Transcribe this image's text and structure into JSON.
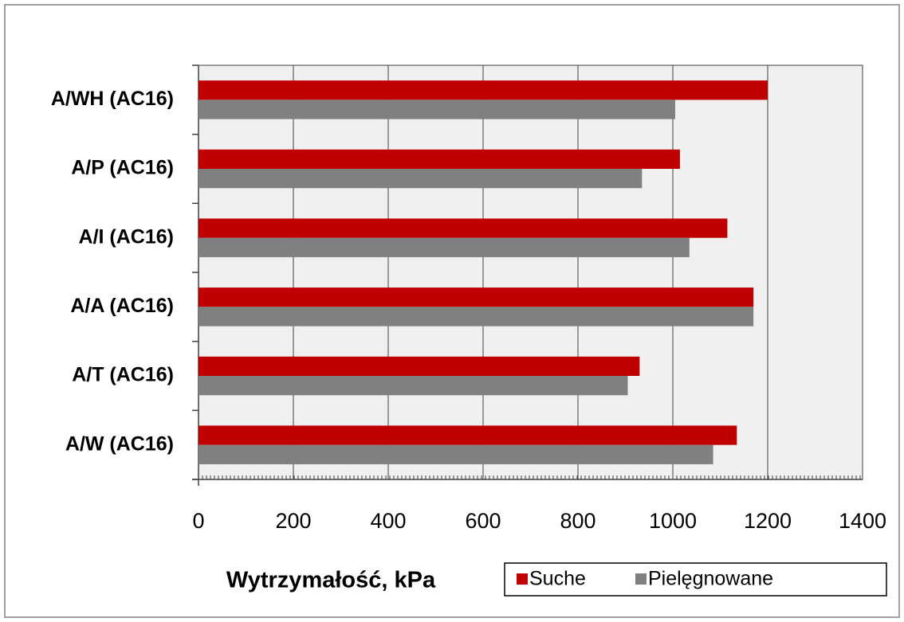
{
  "chart_data": {
    "type": "barh",
    "x_label": "Wytrzymałość, kPa",
    "categories": [
      "A/WH (AC16)",
      "A/P (AC16)",
      "A/I (AC16)",
      "A/A (AC16)",
      "A/T (AC16)",
      "A/W (AC16)"
    ],
    "series": [
      {
        "name": "Suche",
        "color": "#c00000",
        "values": [
          1200,
          1015,
          1115,
          1170,
          930,
          1135
        ]
      },
      {
        "name": "Pielęgnowane",
        "color": "#808080",
        "values": [
          1005,
          935,
          1035,
          1170,
          905,
          1085
        ]
      }
    ],
    "xlim": [
      0,
      1400
    ],
    "xticks": [
      0,
      200,
      400,
      600,
      800,
      1000,
      1200,
      1400
    ],
    "grid": true
  }
}
